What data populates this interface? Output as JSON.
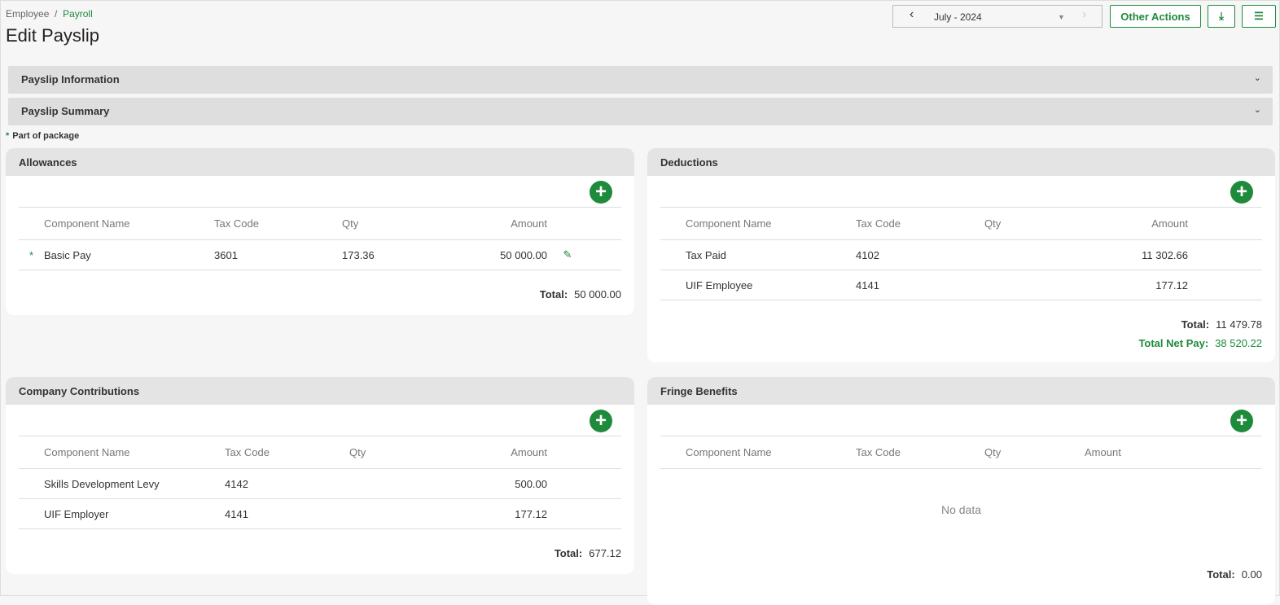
{
  "breadcrumb": {
    "parent": "Employee",
    "separator": "/",
    "current": "Payroll"
  },
  "page_title": "Edit Payslip",
  "period": {
    "value": "July - 2024",
    "prev": "‹",
    "next": "›"
  },
  "actions": {
    "other_actions": "Other Actions",
    "download_icon": "download-icon",
    "view_icon": "list-view-icon"
  },
  "accordions": [
    {
      "label": "Payslip Information"
    },
    {
      "label": "Payslip Summary"
    }
  ],
  "legend": {
    "marker": "*",
    "label": "Part of package"
  },
  "columns": [
    "Component Name",
    "Tax Code",
    "Qty",
    "Amount"
  ],
  "allowances": {
    "title": "Allowances",
    "rows": [
      {
        "package": "*",
        "name": "Basic Pay",
        "tax_code": "3601",
        "qty": "173.36",
        "amount": "50 000.00"
      }
    ],
    "total_label": "Total:",
    "total": "50 000.00"
  },
  "deductions": {
    "title": "Deductions",
    "rows": [
      {
        "name": "Tax Paid",
        "tax_code": "4102",
        "qty": "",
        "amount": "11 302.66"
      },
      {
        "name": "UIF Employee",
        "tax_code": "4141",
        "qty": "",
        "amount": "177.12"
      }
    ],
    "total_label": "Total:",
    "total": "11 479.78",
    "net_label": "Total Net Pay:",
    "net": "38 520.22"
  },
  "contributions": {
    "title": "Company Contributions",
    "rows": [
      {
        "name": "Skills Development Levy",
        "tax_code": "4142",
        "qty": "",
        "amount": "500.00"
      },
      {
        "name": "UIF Employer",
        "tax_code": "4141",
        "qty": "",
        "amount": "177.12"
      }
    ],
    "total_label": "Total:",
    "total": "677.12"
  },
  "fringe": {
    "title": "Fringe Benefits",
    "empty": "No data",
    "total_label": "Total:",
    "total": "0.00"
  },
  "colors": {
    "accent": "#1e8a3c"
  }
}
